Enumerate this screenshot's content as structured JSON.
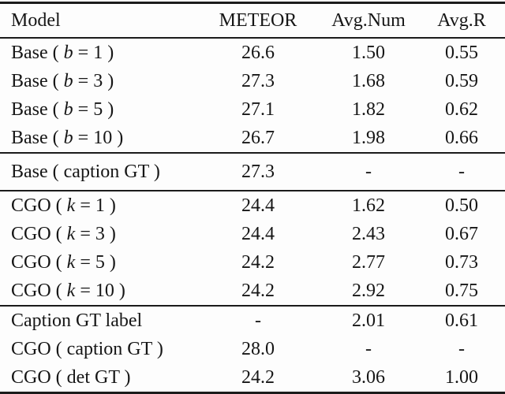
{
  "page": {
    "background": "#fdfdfd",
    "text_color": "#161616",
    "rule_color": "#1b1b1b"
  },
  "chart_data": {
    "type": "table",
    "title": "",
    "columns": [
      "Model",
      "METEOR",
      "Avg.Num",
      "Avg.R"
    ],
    "rows": [
      [
        "Base ( b = 1 )",
        "26.6",
        "1.50",
        "0.55"
      ],
      [
        "Base ( b = 3 )",
        "27.3",
        "1.68",
        "0.59"
      ],
      [
        "Base ( b = 5 )",
        "27.1",
        "1.82",
        "0.62"
      ],
      [
        "Base ( b = 10 )",
        "26.7",
        "1.98",
        "0.66"
      ],
      [
        "Base ( caption GT )",
        "27.3",
        "-",
        "-"
      ],
      [
        "CGO ( k = 1 )",
        "24.4",
        "1.62",
        "0.50"
      ],
      [
        "CGO ( k = 3 )",
        "24.4",
        "2.43",
        "0.67"
      ],
      [
        "CGO ( k = 5 )",
        "24.2",
        "2.77",
        "0.73"
      ],
      [
        "CGO ( k = 10 )",
        "24.2",
        "2.92",
        "0.75"
      ],
      [
        "Caption GT label",
        "-",
        "2.01",
        "0.61"
      ],
      [
        "CGO ( caption GT )",
        "28.0",
        "-",
        "-"
      ],
      [
        "CGO ( det GT )",
        "24.2",
        "3.06",
        "1.00"
      ]
    ]
  },
  "table": {
    "columns": [
      {
        "label": "Model",
        "align": "left"
      },
      {
        "label": "METEOR",
        "align": "center"
      },
      {
        "label": "Avg.Num",
        "align": "center"
      },
      {
        "label": "Avg.R",
        "align": "center"
      }
    ],
    "sections": [
      {
        "name": "base-beam",
        "rows": [
          {
            "model": {
              "pre": "Base ( ",
              "var": "b",
              "post": " = 1 )"
            },
            "meteor": "26.6",
            "avg_num": "1.50",
            "avg_r": "0.55"
          },
          {
            "model": {
              "pre": "Base ( ",
              "var": "b",
              "post": " = 3 )"
            },
            "meteor": "27.3",
            "avg_num": "1.68",
            "avg_r": "0.59"
          },
          {
            "model": {
              "pre": "Base ( ",
              "var": "b",
              "post": " = 5 )"
            },
            "meteor": "27.1",
            "avg_num": "1.82",
            "avg_r": "0.62"
          },
          {
            "model": {
              "pre": "Base ( ",
              "var": "b",
              "post": " = 10 )"
            },
            "meteor": "26.7",
            "avg_num": "1.98",
            "avg_r": "0.66"
          }
        ]
      },
      {
        "name": "base-gt",
        "rows": [
          {
            "model": {
              "pre": "Base ( caption GT )",
              "var": "",
              "post": ""
            },
            "meteor": "27.3",
            "avg_num": "-",
            "avg_r": "-"
          }
        ]
      },
      {
        "name": "cgo-k",
        "rows": [
          {
            "model": {
              "pre": "CGO ( ",
              "var": "k",
              "post": " = 1 )"
            },
            "meteor": "24.4",
            "avg_num": "1.62",
            "avg_r": "0.50"
          },
          {
            "model": {
              "pre": "CGO ( ",
              "var": "k",
              "post": " = 3 )"
            },
            "meteor": "24.4",
            "avg_num": "2.43",
            "avg_r": "0.67"
          },
          {
            "model": {
              "pre": "CGO ( ",
              "var": "k",
              "post": " = 5 )"
            },
            "meteor": "24.2",
            "avg_num": "2.77",
            "avg_r": "0.73"
          },
          {
            "model": {
              "pre": "CGO ( ",
              "var": "k",
              "post": " = 10 )"
            },
            "meteor": "24.2",
            "avg_num": "2.92",
            "avg_r": "0.75"
          }
        ]
      },
      {
        "name": "gt-variants",
        "rows": [
          {
            "model": {
              "pre": "Caption GT label",
              "var": "",
              "post": ""
            },
            "meteor": "-",
            "avg_num": "2.01",
            "avg_r": "0.61"
          },
          {
            "model": {
              "pre": "CGO ( caption GT )",
              "var": "",
              "post": ""
            },
            "meteor": "28.0",
            "avg_num": "-",
            "avg_r": "-"
          },
          {
            "model": {
              "pre": "CGO ( det GT )",
              "var": "",
              "post": ""
            },
            "meteor": "24.2",
            "avg_num": "3.06",
            "avg_r": "1.00"
          }
        ]
      }
    ]
  }
}
